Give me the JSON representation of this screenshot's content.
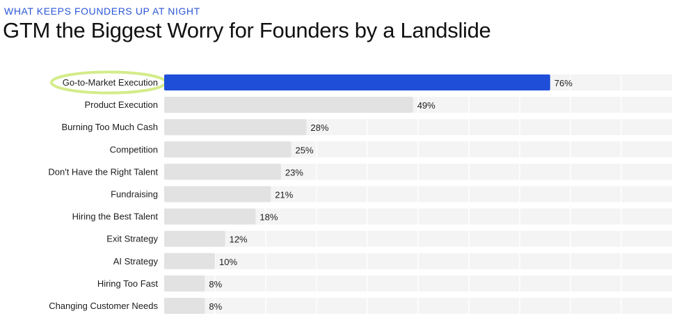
{
  "header": {
    "eyebrow": "WHAT KEEPS FOUNDERS UP AT NIGHT",
    "title": "GTM the Biggest Worry for Founders by a Landslide"
  },
  "colors": {
    "highlight_bar": "#1f4fd8",
    "default_bar": "#e2e2e2",
    "track": "#f4f4f4",
    "highlight_circle": "#d4ec8a",
    "eyebrow": "#2a56d6"
  },
  "chart_data": {
    "type": "bar",
    "orientation": "horizontal",
    "categories": [
      "Go-to-Market Execution",
      "Product Execution",
      "Burning Too Much Cash",
      "Competition",
      "Don't Have the Right Talent",
      "Fundraising",
      "Hiring the Best Talent",
      "Exit Strategy",
      "AI Strategy",
      "Hiring Too Fast",
      "Changing Customer Needs"
    ],
    "values": [
      76,
      49,
      28,
      25,
      23,
      21,
      18,
      12,
      10,
      8,
      8
    ],
    "value_labels": [
      "76%",
      "49%",
      "28%",
      "25%",
      "23%",
      "21%",
      "18%",
      "12%",
      "10%",
      "8%",
      "8%"
    ],
    "highlighted_index": 0,
    "xlim": [
      0,
      100
    ],
    "grid": true
  }
}
